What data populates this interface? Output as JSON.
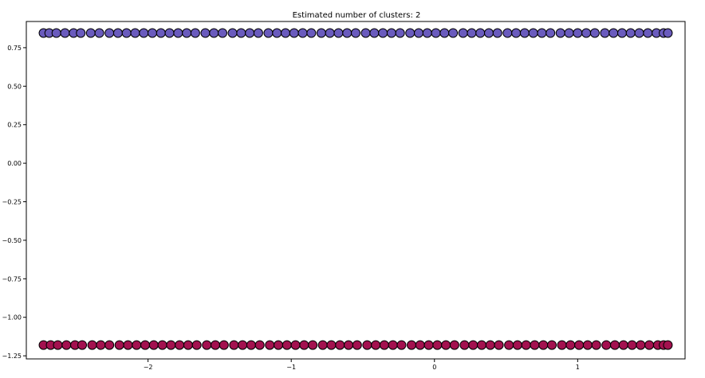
{
  "chart_data": {
    "type": "scatter",
    "title": "Estimated number of clusters: 2",
    "xlabel": "",
    "ylabel": "",
    "xlim": [
      -2.85,
      1.75
    ],
    "ylim": [
      -1.27,
      0.92
    ],
    "x_ticks": [
      -2,
      -1,
      0,
      1
    ],
    "x_tick_labels": [
      "−2",
      "−1",
      "0",
      "1"
    ],
    "y_ticks": [
      0.75,
      0.5,
      0.25,
      0.0,
      -0.25,
      -0.5,
      -0.75,
      -1.0,
      -1.25
    ],
    "y_tick_labels": [
      "0.75",
      "0.50",
      "0.25",
      "0.00",
      "−0.25",
      "−0.50",
      "−0.75",
      "−1.00",
      "−1.25"
    ],
    "grid": false,
    "legend": "none",
    "marker": "circle",
    "marker_edge_color": "#000000",
    "series": [
      {
        "color": "#6a5bbd",
        "y": 0.845,
        "x": [
          -2.73,
          -2.69,
          -2.64,
          -2.58,
          -2.52,
          -2.47,
          -2.4,
          -2.34,
          -2.27,
          -2.21,
          -2.15,
          -2.09,
          -2.03,
          -1.97,
          -1.91,
          -1.85,
          -1.79,
          -1.73,
          -1.67,
          -1.6,
          -1.54,
          -1.48,
          -1.41,
          -1.35,
          -1.29,
          -1.23,
          -1.16,
          -1.1,
          -1.04,
          -0.98,
          -0.92,
          -0.86,
          -0.79,
          -0.73,
          -0.67,
          -0.61,
          -0.55,
          -0.48,
          -0.42,
          -0.36,
          -0.3,
          -0.24,
          -0.17,
          -0.11,
          -0.05,
          0.01,
          0.07,
          0.13,
          0.2,
          0.26,
          0.32,
          0.38,
          0.44,
          0.51,
          0.57,
          0.63,
          0.69,
          0.75,
          0.81,
          0.88,
          0.94,
          1.0,
          1.06,
          1.12,
          1.19,
          1.25,
          1.31,
          1.37,
          1.43,
          1.49,
          1.55,
          1.6,
          1.63
        ]
      },
      {
        "color": "#a3114f",
        "y": -1.18,
        "x": [
          -2.73,
          -2.68,
          -2.63,
          -2.57,
          -2.51,
          -2.46,
          -2.39,
          -2.33,
          -2.27,
          -2.2,
          -2.14,
          -2.08,
          -2.02,
          -1.96,
          -1.9,
          -1.84,
          -1.78,
          -1.72,
          -1.66,
          -1.59,
          -1.53,
          -1.47,
          -1.4,
          -1.34,
          -1.28,
          -1.22,
          -1.15,
          -1.09,
          -1.03,
          -0.97,
          -0.91,
          -0.85,
          -0.78,
          -0.72,
          -0.66,
          -0.6,
          -0.54,
          -0.47,
          -0.41,
          -0.35,
          -0.29,
          -0.23,
          -0.16,
          -0.1,
          -0.04,
          0.02,
          0.08,
          0.14,
          0.21,
          0.27,
          0.33,
          0.39,
          0.45,
          0.52,
          0.58,
          0.64,
          0.7,
          0.76,
          0.82,
          0.89,
          0.95,
          1.01,
          1.07,
          1.13,
          1.2,
          1.26,
          1.32,
          1.38,
          1.44,
          1.5,
          1.56,
          1.6,
          1.63
        ]
      }
    ]
  }
}
